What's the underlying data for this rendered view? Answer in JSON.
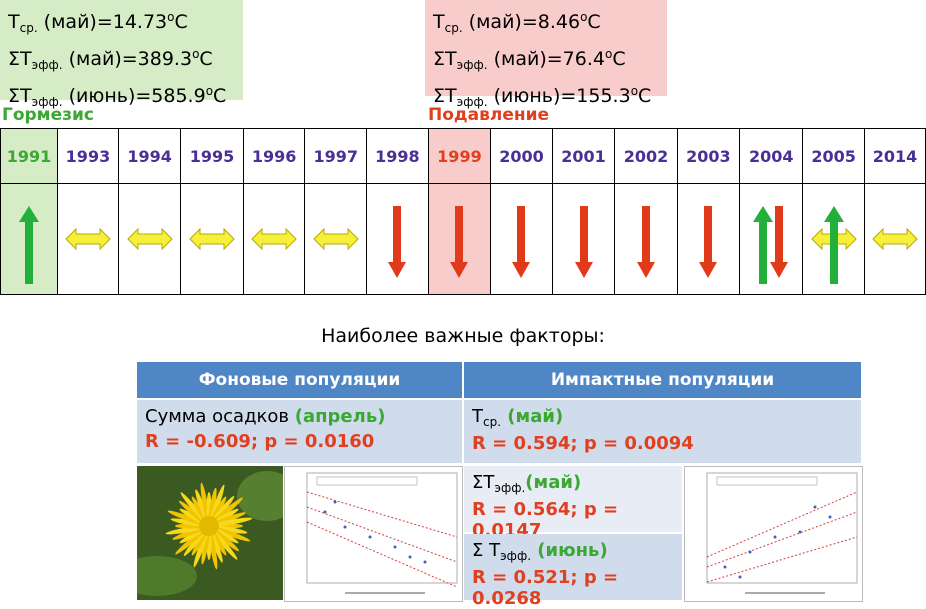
{
  "box_left": {
    "line1": {
      "t": "T",
      "sub": "ср.",
      "mid": " (май)=14.73",
      "sup": "o",
      "tail": "C"
    },
    "line2": {
      "t": "ΣT",
      "sub": "эфф.",
      "mid": " (май)=389.3",
      "sup": "o",
      "tail": "C"
    },
    "line3": {
      "t": "ΣT",
      "sub": "эфф.",
      "mid": " (июнь)=585.9",
      "sup": "o",
      "tail": "C"
    }
  },
  "box_right": {
    "line1": {
      "t": "T",
      "sub": "ср.",
      "mid": " (май)=8.46",
      "sup": "o",
      "tail": "C"
    },
    "line2": {
      "t": "ΣT",
      "sub": "эфф.",
      "mid": " (май)=76.4",
      "sup": "o",
      "tail": "C"
    },
    "line3": {
      "t": "ΣT",
      "sub": "эфф.",
      "mid": " (июнь)=155.3",
      "sup": "o",
      "tail": "C"
    }
  },
  "stages": {
    "left": "Гормезис",
    "right": "Подавление"
  },
  "years": [
    "1991",
    "1993",
    "1994",
    "1995",
    "1996",
    "1997",
    "1998",
    "1999",
    "2000",
    "2001",
    "2002",
    "2003",
    "2004",
    "2005",
    "2014"
  ],
  "effects": [
    "up",
    "both",
    "both",
    "both",
    "both",
    "both",
    "down",
    "down",
    "down",
    "down",
    "down",
    "down",
    "up-down",
    "both-up",
    "both"
  ],
  "colors": {
    "green": "#23b03a",
    "red": "#e03a1a",
    "yellow": "#f7f03a",
    "header": "#4f86c5",
    "cell": "#d0dbec"
  },
  "factors_title": "Наиболее важные факторы:",
  "headers": {
    "left": "Фоновые популяции",
    "right": "Импактные популяции"
  },
  "left_factor": {
    "name": "Сумма осадков ",
    "period": "(апрель)",
    "stat": "R = -0.609; p = 0.0160"
  },
  "right_factors": [
    {
      "t": "T",
      "sub": "ср.",
      "period": " (май)",
      "stat": "R = 0.594; p = 0.0094"
    },
    {
      "t": "ΣT",
      "sub": "эфф.",
      "period": "(май)",
      "stat": "R = 0.564; p = 0.0147"
    },
    {
      "t": "Σ T",
      "sub": "эфф.",
      "period": " (июнь)",
      "stat": "R = 0.521; p = 0.0268"
    }
  ]
}
